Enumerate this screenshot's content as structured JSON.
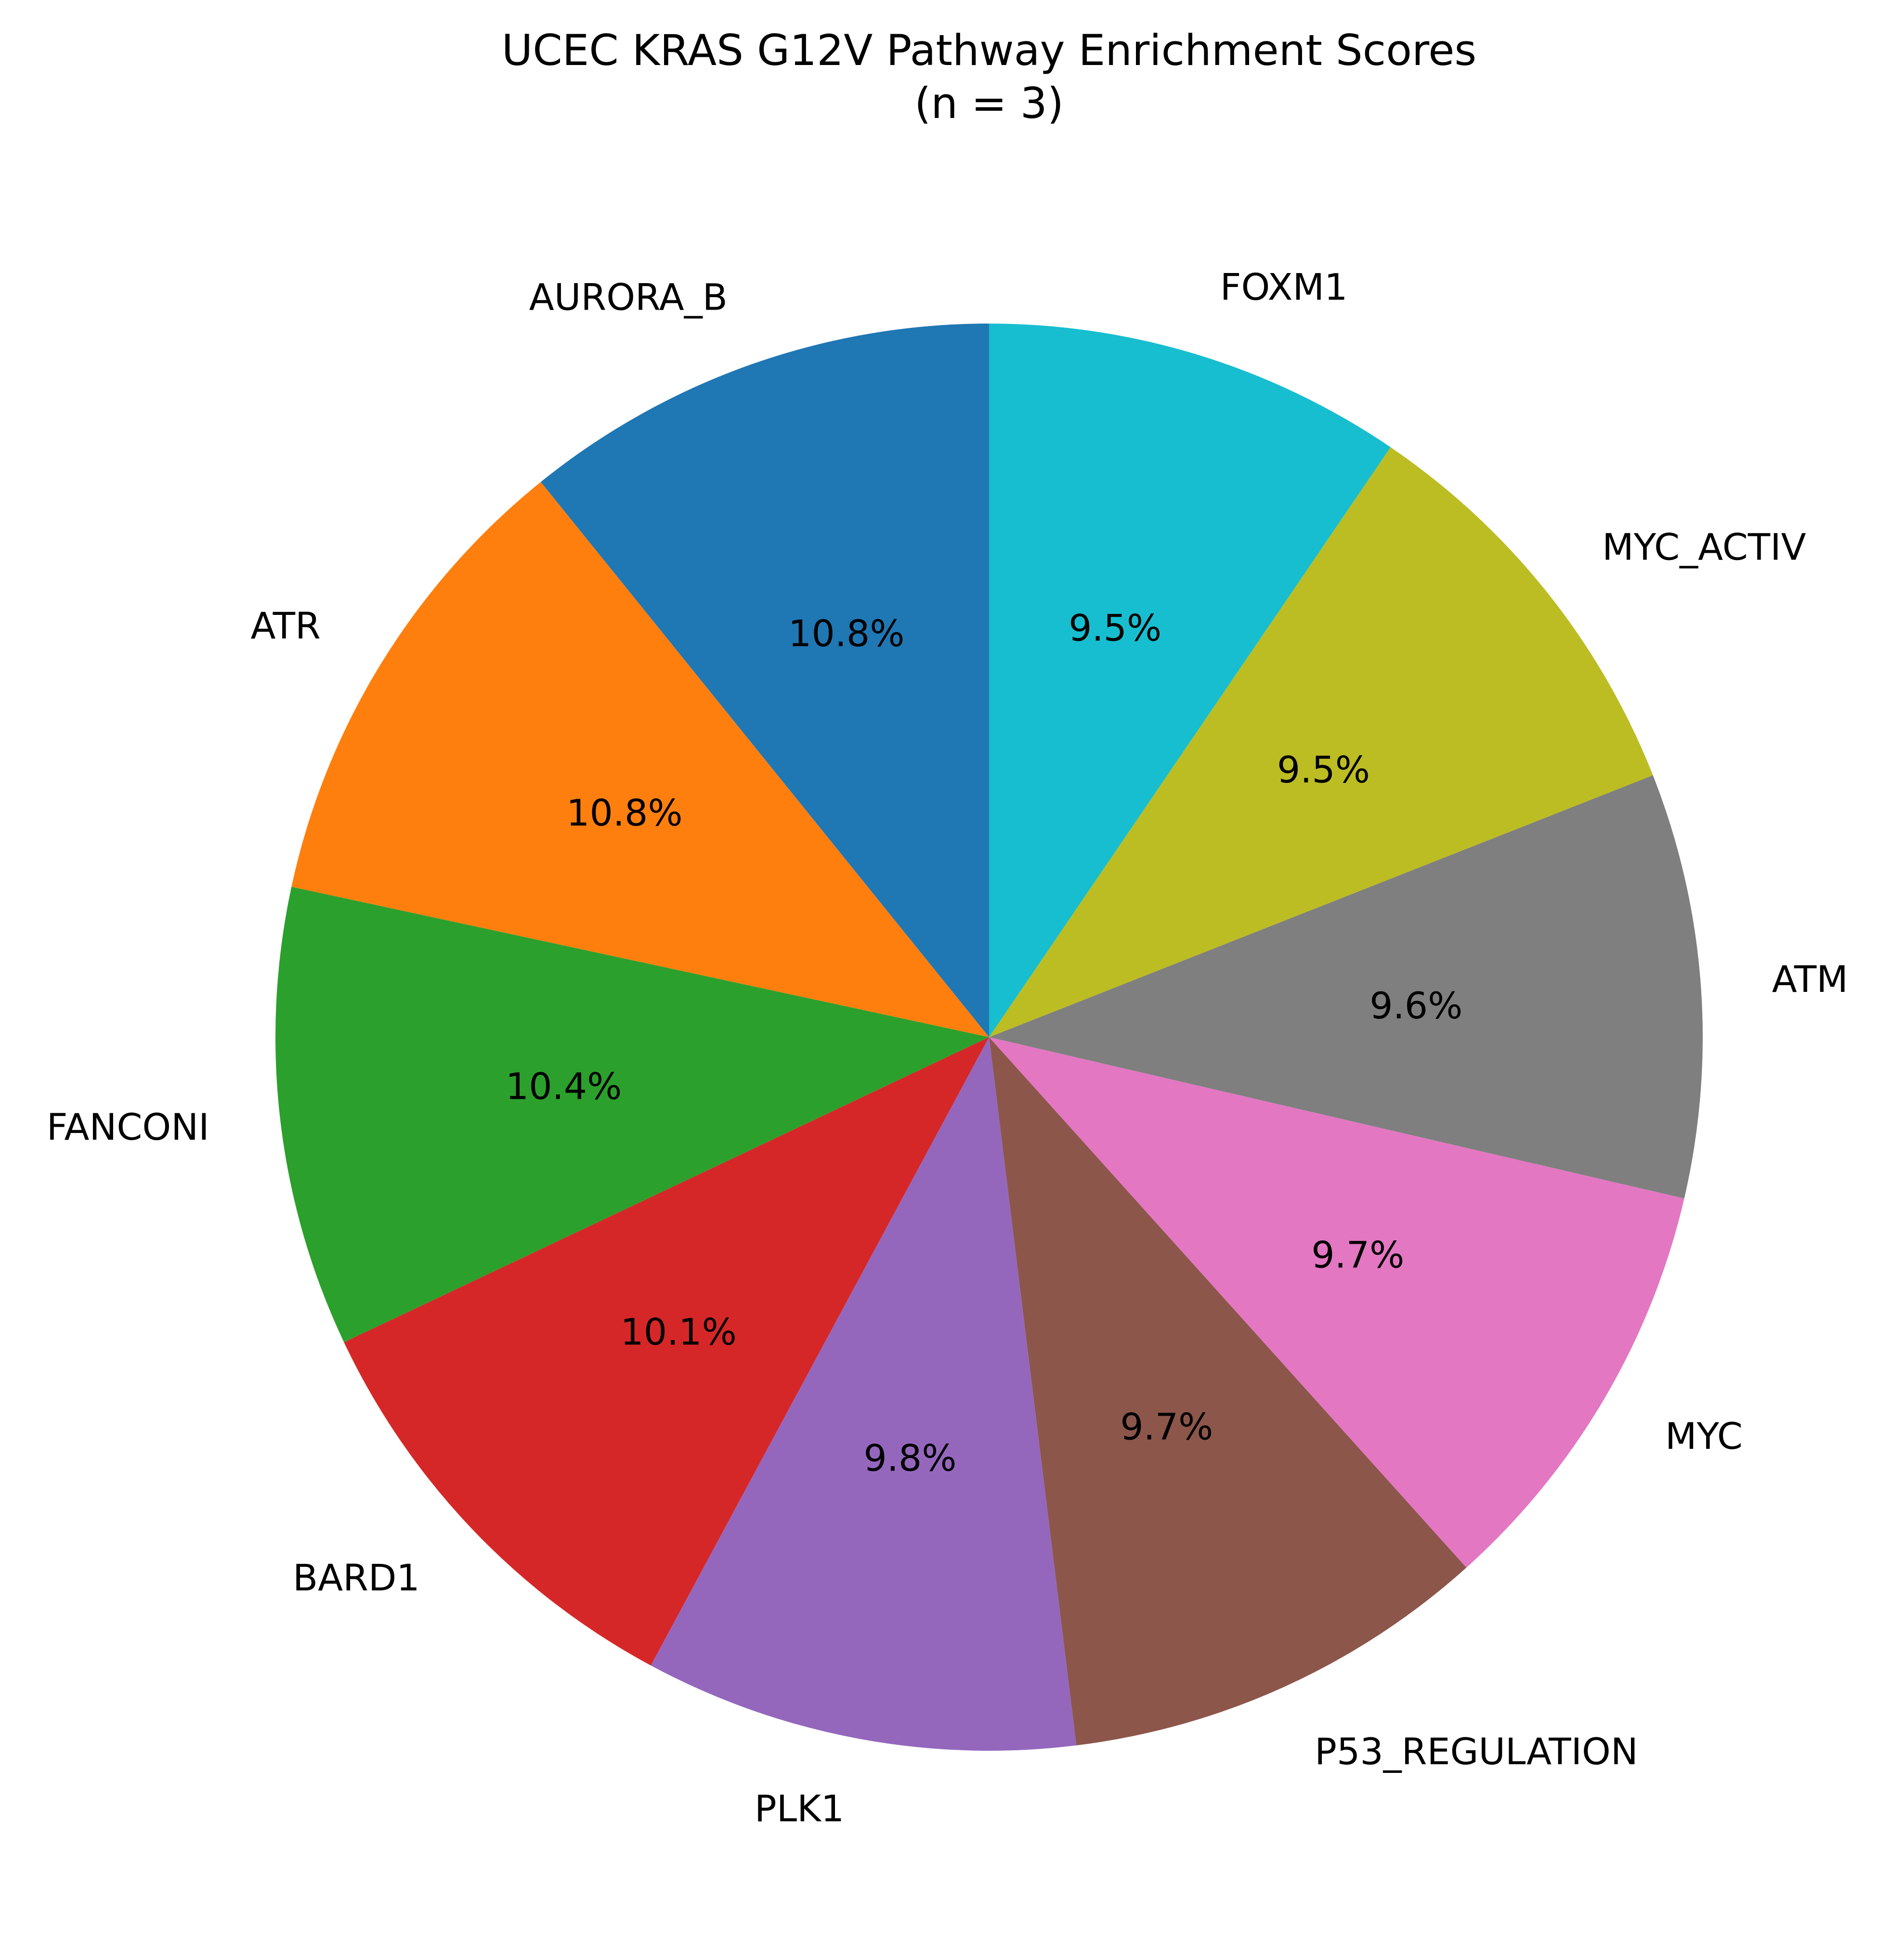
{
  "chart_data": {
    "type": "pie",
    "title": "UCEC KRAS G12V Pathway Enrichment Scores",
    "subtitle": "(n = 3)",
    "start_angle_deg": 90,
    "direction": "counterclockwise",
    "slices": [
      {
        "label": "AURORA_B",
        "pct_label": "10.8%",
        "value": 10.8,
        "color": "#1f77b4"
      },
      {
        "label": "ATR",
        "pct_label": "10.8%",
        "value": 10.8,
        "color": "#ff7f0e"
      },
      {
        "label": "FANCONI",
        "pct_label": "10.4%",
        "value": 10.4,
        "color": "#2ca02c"
      },
      {
        "label": "BARD1",
        "pct_label": "10.1%",
        "value": 10.1,
        "color": "#d62728"
      },
      {
        "label": "PLK1",
        "pct_label": "9.8%",
        "value": 9.8,
        "color": "#9467bd"
      },
      {
        "label": "P53_REGULATION",
        "pct_label": "9.7%",
        "value": 9.7,
        "color": "#8c564b"
      },
      {
        "label": "MYC",
        "pct_label": "9.7%",
        "value": 9.7,
        "color": "#e377c2"
      },
      {
        "label": "ATM",
        "pct_label": "9.6%",
        "value": 9.6,
        "color": "#7f7f7f"
      },
      {
        "label": "MYC_ACTIV",
        "pct_label": "9.5%",
        "value": 9.5,
        "color": "#bcbd22"
      },
      {
        "label": "FOXM1",
        "pct_label": "9.5%",
        "value": 9.5,
        "color": "#17becf"
      }
    ]
  }
}
